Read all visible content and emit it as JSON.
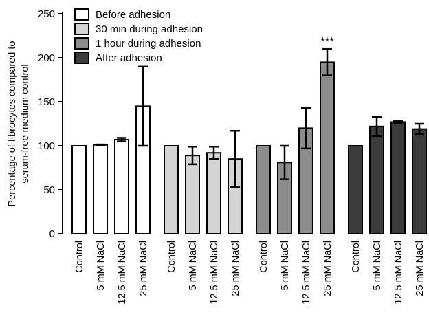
{
  "chart_data": {
    "type": "bar",
    "ylabel": "Percentage of fibrocytes compared to serum-free medium control",
    "ylabel_lines": [
      "Percentage of fibrocytes compared to",
      "serum-free medium control"
    ],
    "ylim": [
      0,
      250
    ],
    "yticks": [
      0,
      50,
      100,
      150,
      200,
      250
    ],
    "categories": [
      "Control",
      "5 mM NaCl",
      "12.5 mM NaCl",
      "25 mM NaCl"
    ],
    "series": [
      {
        "name": "Before adhesion",
        "color": "#ffffff",
        "values": [
          100,
          101,
          107,
          145
        ],
        "errors": [
          0,
          0.5,
          2,
          45
        ]
      },
      {
        "name": "30 min during adhesion",
        "color": "#d4d4d4",
        "values": [
          100,
          89,
          92,
          85
        ],
        "errors": [
          0,
          10,
          7,
          32
        ]
      },
      {
        "name": "1 hour during adhesion",
        "color": "#8c8c8c",
        "values": [
          100,
          81,
          120,
          195
        ],
        "errors": [
          0,
          19,
          23,
          15
        ]
      },
      {
        "name": "After adhesion",
        "color": "#3c3c3c",
        "values": [
          100,
          122,
          127,
          119
        ],
        "errors": [
          0,
          11,
          1,
          6
        ]
      }
    ],
    "annotations": [
      {
        "text": "***",
        "series": 2,
        "category": 3
      }
    ],
    "legend_position": "top-left",
    "grid": false
  }
}
